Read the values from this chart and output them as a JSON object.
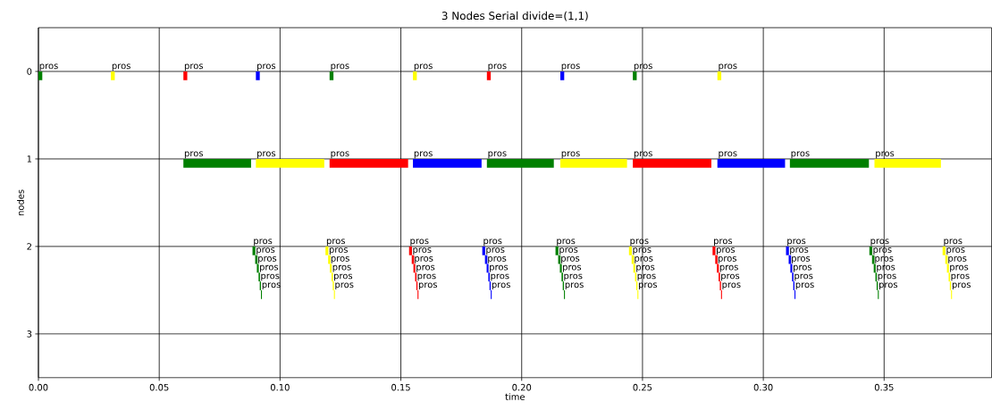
{
  "chart_data": {
    "type": "bar",
    "orientation": "horizontal",
    "title": "3 Nodes Serial divide=(1,1)",
    "xlabel": "time",
    "ylabel": "nodes",
    "xlim": [
      0,
      0.3945
    ],
    "ylim": [
      3.5,
      -0.5
    ],
    "xticks": [
      {
        "value": 0,
        "label": "0.00"
      },
      {
        "value": 0.05,
        "label": "0.05"
      },
      {
        "value": 0.1,
        "label": "0.10"
      },
      {
        "value": 0.15,
        "label": "0.15"
      },
      {
        "value": 0.2,
        "label": "0.20"
      },
      {
        "value": 0.25,
        "label": "0.25"
      },
      {
        "value": 0.3,
        "label": "0.30"
      },
      {
        "value": 0.35,
        "label": "0.35"
      }
    ],
    "yticks": [
      0,
      1,
      2,
      3
    ],
    "grid": true,
    "series": [
      {
        "color": "#008000",
        "x": [
          0,
          1,
          2,
          2.1,
          2.2,
          2.3,
          2.4,
          2.5
        ],
        "base": [
          0,
          0.06,
          0.0886,
          0.0897,
          0.0904,
          0.0911,
          0.0916,
          0.0921
        ],
        "values": [
          0.0016,
          0.028,
          0.0012,
          0.001,
          0.0008,
          0.0006,
          0.0005,
          0.0004
        ],
        "value_labels": [
          "pros",
          "pros",
          "pros",
          "pros",
          "pros",
          "pros",
          "pros",
          "pros"
        ]
      },
      {
        "color": "#ffff00",
        "x": [
          0,
          1,
          2,
          2.1,
          2.2,
          2.3,
          2.4,
          2.5
        ],
        "base": [
          0.03,
          0.09,
          0.1188,
          0.1199,
          0.1206,
          0.1213,
          0.1218,
          0.1223
        ],
        "values": [
          0.0016,
          0.0283,
          0.0012,
          0.001,
          0.0008,
          0.0006,
          0.0005,
          0.0004
        ],
        "value_labels": [
          "pros",
          "pros",
          "pros",
          "pros",
          "pros",
          "pros",
          "pros",
          "pros"
        ]
      },
      {
        "color": "#ff0000",
        "x": [
          0,
          1,
          2,
          2.1,
          2.2,
          2.3,
          2.4,
          2.5
        ],
        "base": [
          0.06,
          0.1205,
          0.1534,
          0.1545,
          0.1552,
          0.1559,
          0.1564,
          0.1569
        ],
        "values": [
          0.0016,
          0.0325,
          0.0012,
          0.001,
          0.0008,
          0.0006,
          0.0005,
          0.0004
        ],
        "value_labels": [
          "pros",
          "pros",
          "pros",
          "pros",
          "pros",
          "pros",
          "pros",
          "pros"
        ]
      },
      {
        "color": "#0000ff",
        "x": [
          0,
          1,
          2,
          2.1,
          2.2,
          2.3,
          2.4,
          2.5
        ],
        "base": [
          0.09,
          0.155,
          0.1837,
          0.1848,
          0.1855,
          0.1862,
          0.1867,
          0.1872
        ],
        "values": [
          0.0016,
          0.0284,
          0.0012,
          0.001,
          0.0008,
          0.0006,
          0.0005,
          0.0004
        ],
        "value_labels": [
          "pros",
          "pros",
          "pros",
          "pros",
          "pros",
          "pros",
          "pros",
          "pros"
        ]
      },
      {
        "color": "#008000",
        "x": [
          0,
          1,
          2,
          2.1,
          2.2,
          2.3,
          2.4,
          2.5
        ],
        "base": [
          0.1205,
          0.1856,
          0.214,
          0.2151,
          0.2158,
          0.2165,
          0.217,
          0.2175
        ],
        "values": [
          0.0016,
          0.0277,
          0.0012,
          0.001,
          0.0008,
          0.0006,
          0.0005,
          0.0004
        ],
        "value_labels": [
          "pros",
          "pros",
          "pros",
          "pros",
          "pros",
          "pros",
          "pros",
          "pros"
        ]
      },
      {
        "color": "#ffff00",
        "x": [
          0,
          1,
          2,
          2.1,
          2.2,
          2.3,
          2.4,
          2.5
        ],
        "base": [
          0.155,
          0.216,
          0.2444,
          0.2455,
          0.2462,
          0.2469,
          0.2474,
          0.2479
        ],
        "values": [
          0.0016,
          0.0276,
          0.0012,
          0.001,
          0.0008,
          0.0006,
          0.0005,
          0.0004
        ],
        "value_labels": [
          "pros",
          "pros",
          "pros",
          "pros",
          "pros",
          "pros",
          "pros",
          "pros"
        ]
      },
      {
        "color": "#ff0000",
        "x": [
          0,
          1,
          2,
          2.1,
          2.2,
          2.3,
          2.4,
          2.5
        ],
        "base": [
          0.1856,
          0.246,
          0.279,
          0.2801,
          0.2808,
          0.2815,
          0.282,
          0.2825
        ],
        "values": [
          0.0016,
          0.0325,
          0.0012,
          0.001,
          0.0008,
          0.0006,
          0.0005,
          0.0004
        ],
        "value_labels": [
          "pros",
          "pros",
          "pros",
          "pros",
          "pros",
          "pros",
          "pros",
          "pros"
        ]
      },
      {
        "color": "#0000ff",
        "x": [
          0,
          1,
          2,
          2.1,
          2.2,
          2.3,
          2.4,
          2.5
        ],
        "base": [
          0.216,
          0.281,
          0.3094,
          0.3105,
          0.3112,
          0.3119,
          0.3124,
          0.3129
        ],
        "values": [
          0.0016,
          0.028,
          0.0012,
          0.001,
          0.0008,
          0.0006,
          0.0005,
          0.0004
        ],
        "value_labels": [
          "pros",
          "pros",
          "pros",
          "pros",
          "pros",
          "pros",
          "pros",
          "pros"
        ]
      },
      {
        "color": "#008000",
        "x": [
          0,
          1,
          2,
          2.1,
          2.2,
          2.3,
          2.4,
          2.5
        ],
        "base": [
          0.246,
          0.311,
          0.3439,
          0.345,
          0.3457,
          0.3464,
          0.3469,
          0.3474
        ],
        "values": [
          0.0016,
          0.0327,
          0.0012,
          0.001,
          0.0008,
          0.0006,
          0.0005,
          0.0004
        ],
        "value_labels": [
          "pros",
          "pros",
          "pros",
          "pros",
          "pros",
          "pros",
          "pros",
          "pros"
        ]
      },
      {
        "color": "#ffff00",
        "x": [
          0,
          1,
          2,
          2.1,
          2.2,
          2.3,
          2.4,
          2.5
        ],
        "base": [
          0.281,
          0.346,
          0.3742,
          0.3753,
          0.376,
          0.3767,
          0.3772,
          0.3777
        ],
        "values": [
          0.0016,
          0.0275,
          0.0012,
          0.001,
          0.0008,
          0.0006,
          0.0005,
          0.0004
        ],
        "value_labels": [
          "pros",
          "pros",
          "pros",
          "pros",
          "pros",
          "pros",
          "pros",
          "pros"
        ]
      }
    ]
  }
}
